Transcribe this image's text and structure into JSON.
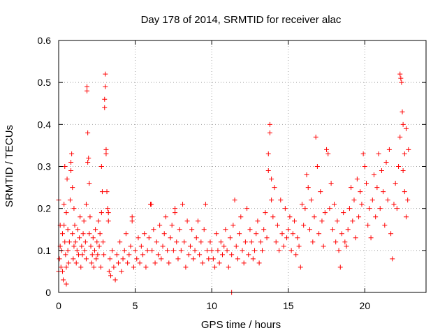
{
  "chart_data": {
    "type": "scatter",
    "title": "Day 178 of 2014, SRMTID for receiver alac",
    "xlabel": "GPS time / hours",
    "ylabel": "SRMTID / TECUs",
    "xlim": [
      0,
      24
    ],
    "ylim": [
      0,
      0.6
    ],
    "xticks": [
      0,
      5,
      10,
      15,
      20
    ],
    "yticks": [
      0,
      0.1,
      0.2,
      0.3,
      0.4,
      0.5,
      0.6
    ],
    "grid": true,
    "marker": "+",
    "series": [
      {
        "name": "SRMTID",
        "color": "#ff0000",
        "points": [
          [
            0.0,
            0.05
          ],
          [
            0.0,
            0.22
          ],
          [
            0.05,
            0.08
          ],
          [
            0.1,
            0.11
          ],
          [
            0.1,
            0.16
          ],
          [
            0.15,
            0.06
          ],
          [
            0.2,
            0.1
          ],
          [
            0.25,
            0.14
          ],
          [
            0.25,
            0.05
          ],
          [
            0.3,
            0.03
          ],
          [
            0.35,
            0.21
          ],
          [
            0.35,
            0.16
          ],
          [
            0.4,
            0.12
          ],
          [
            0.4,
            0.3
          ],
          [
            0.45,
            0.09
          ],
          [
            0.5,
            0.06
          ],
          [
            0.5,
            0.19
          ],
          [
            0.5,
            0.02
          ],
          [
            0.55,
            0.27
          ],
          [
            0.6,
            0.1
          ],
          [
            0.6,
            0.15
          ],
          [
            0.65,
            0.07
          ],
          [
            0.7,
            0.12
          ],
          [
            0.75,
            0.22
          ],
          [
            0.8,
            0.29
          ],
          [
            0.8,
            0.31
          ],
          [
            0.85,
            0.33
          ],
          [
            0.9,
            0.14
          ],
          [
            0.9,
            0.25
          ],
          [
            0.95,
            0.08
          ],
          [
            1.0,
            0.11
          ],
          [
            1.0,
            0.2
          ],
          [
            1.05,
            0.16
          ],
          [
            1.1,
            0.12
          ],
          [
            1.15,
            0.07
          ],
          [
            1.2,
            0.1
          ],
          [
            1.25,
            0.15
          ],
          [
            1.3,
            0.09
          ],
          [
            1.35,
            0.13
          ],
          [
            1.4,
            0.18
          ],
          [
            1.45,
            0.06
          ],
          [
            1.5,
            0.11
          ],
          [
            1.55,
            0.09
          ],
          [
            1.6,
            0.14
          ],
          [
            1.65,
            0.17
          ],
          [
            1.7,
            0.1
          ],
          [
            1.75,
            0.12
          ],
          [
            1.8,
            0.08
          ],
          [
            1.8,
            0.21
          ],
          [
            1.85,
            0.49
          ],
          [
            1.85,
            0.48
          ],
          [
            1.9,
            0.38
          ],
          [
            1.9,
            0.31
          ],
          [
            1.95,
            0.32
          ],
          [
            2.0,
            0.26
          ],
          [
            2.0,
            0.14
          ],
          [
            2.05,
            0.18
          ],
          [
            2.1,
            0.11
          ],
          [
            2.15,
            0.07
          ],
          [
            2.2,
            0.09
          ],
          [
            2.25,
            0.13
          ],
          [
            2.3,
            0.06
          ],
          [
            2.35,
            0.1
          ],
          [
            2.4,
            0.15
          ],
          [
            2.45,
            0.08
          ],
          [
            2.5,
            0.12
          ],
          [
            2.55,
            0.09
          ],
          [
            2.6,
            0.17
          ],
          [
            2.65,
            0.11
          ],
          [
            2.7,
            0.14
          ],
          [
            2.75,
            0.06
          ],
          [
            2.8,
            0.19
          ],
          [
            2.8,
            0.3
          ],
          [
            2.85,
            0.24
          ],
          [
            2.9,
            0.12
          ],
          [
            2.95,
            0.09
          ],
          [
            3.0,
            0.44
          ],
          [
            3.0,
            0.46
          ],
          [
            3.05,
            0.49
          ],
          [
            3.05,
            0.52
          ],
          [
            3.1,
            0.33
          ],
          [
            3.1,
            0.34
          ],
          [
            3.15,
            0.24
          ],
          [
            3.2,
            0.2
          ],
          [
            3.25,
            0.17
          ],
          [
            3.25,
            0.19
          ],
          [
            3.3,
            0.05
          ],
          [
            3.35,
            0.08
          ],
          [
            3.4,
            0.04
          ],
          [
            3.5,
            0.1
          ],
          [
            3.6,
            0.06
          ],
          [
            3.7,
            0.03
          ],
          [
            3.8,
            0.09
          ],
          [
            3.9,
            0.07
          ],
          [
            4.0,
            0.12
          ],
          [
            4.1,
            0.05
          ],
          [
            4.2,
            0.08
          ],
          [
            4.3,
            0.1
          ],
          [
            4.4,
            0.14
          ],
          [
            4.5,
            0.07
          ],
          [
            4.6,
            0.09
          ],
          [
            4.7,
            0.11
          ],
          [
            4.8,
            0.17
          ],
          [
            4.8,
            0.18
          ],
          [
            4.9,
            0.06
          ],
          [
            5.0,
            0.1
          ],
          [
            5.1,
            0.08
          ],
          [
            5.2,
            0.13
          ],
          [
            5.3,
            0.07
          ],
          [
            5.4,
            0.11
          ],
          [
            5.5,
            0.09
          ],
          [
            5.6,
            0.14
          ],
          [
            5.7,
            0.06
          ],
          [
            5.8,
            0.1
          ],
          [
            5.9,
            0.13
          ],
          [
            6.0,
            0.21
          ],
          [
            6.05,
            0.21
          ],
          [
            6.1,
            0.1
          ],
          [
            6.2,
            0.15
          ],
          [
            6.3,
            0.07
          ],
          [
            6.4,
            0.12
          ],
          [
            6.5,
            0.09
          ],
          [
            6.6,
            0.16
          ],
          [
            6.7,
            0.08
          ],
          [
            6.8,
            0.11
          ],
          [
            6.9,
            0.14
          ],
          [
            7.0,
            0.18
          ],
          [
            7.1,
            0.1
          ],
          [
            7.2,
            0.07
          ],
          [
            7.3,
            0.13
          ],
          [
            7.4,
            0.16
          ],
          [
            7.5,
            0.1
          ],
          [
            7.6,
            0.19
          ],
          [
            7.6,
            0.2
          ],
          [
            7.7,
            0.12
          ],
          [
            7.8,
            0.08
          ],
          [
            7.9,
            0.15
          ],
          [
            8.0,
            0.1
          ],
          [
            8.1,
            0.21
          ],
          [
            8.2,
            0.12
          ],
          [
            8.3,
            0.06
          ],
          [
            8.4,
            0.17
          ],
          [
            8.5,
            0.09
          ],
          [
            8.6,
            0.11
          ],
          [
            8.7,
            0.15
          ],
          [
            8.8,
            0.08
          ],
          [
            8.9,
            0.1
          ],
          [
            9.0,
            0.13
          ],
          [
            9.1,
            0.17
          ],
          [
            9.2,
            0.09
          ],
          [
            9.3,
            0.12
          ],
          [
            9.4,
            0.07
          ],
          [
            9.5,
            0.15
          ],
          [
            9.6,
            0.21
          ],
          [
            9.7,
            0.1
          ],
          [
            9.8,
            0.08
          ],
          [
            9.9,
            0.12
          ],
          [
            10.0,
            0.1
          ],
          [
            10.1,
            0.08
          ],
          [
            10.2,
            0.06
          ],
          [
            10.3,
            0.14
          ],
          [
            10.4,
            0.1
          ],
          [
            10.5,
            0.07
          ],
          [
            10.6,
            0.12
          ],
          [
            10.7,
            0.09
          ],
          [
            10.8,
            0.11
          ],
          [
            10.9,
            0.15
          ],
          [
            11.0,
            0.1
          ],
          [
            11.1,
            0.06
          ],
          [
            11.2,
            0.13
          ],
          [
            11.3,
            0.0
          ],
          [
            11.3,
            0.09
          ],
          [
            11.4,
            0.16
          ],
          [
            11.5,
            0.22
          ],
          [
            11.6,
            0.11
          ],
          [
            11.7,
            0.08
          ],
          [
            11.8,
            0.14
          ],
          [
            11.9,
            0.18
          ],
          [
            12.0,
            0.1
          ],
          [
            12.1,
            0.07
          ],
          [
            12.2,
            0.12
          ],
          [
            12.3,
            0.2
          ],
          [
            12.4,
            0.09
          ],
          [
            12.5,
            0.15
          ],
          [
            12.6,
            0.12
          ],
          [
            12.7,
            0.08
          ],
          [
            12.8,
            0.1
          ],
          [
            12.9,
            0.14
          ],
          [
            13.0,
            0.17
          ],
          [
            13.1,
            0.07
          ],
          [
            13.2,
            0.12
          ],
          [
            13.3,
            0.1
          ],
          [
            13.4,
            0.15
          ],
          [
            13.5,
            0.19
          ],
          [
            13.6,
            0.13
          ],
          [
            13.7,
            0.29
          ],
          [
            13.7,
            0.33
          ],
          [
            13.8,
            0.38
          ],
          [
            13.8,
            0.4
          ],
          [
            13.9,
            0.27
          ],
          [
            13.9,
            0.22
          ],
          [
            14.0,
            0.18
          ],
          [
            14.1,
            0.25
          ],
          [
            14.2,
            0.12
          ],
          [
            14.3,
            0.16
          ],
          [
            14.4,
            0.1
          ],
          [
            14.5,
            0.22
          ],
          [
            14.6,
            0.14
          ],
          [
            14.7,
            0.11
          ],
          [
            14.8,
            0.2
          ],
          [
            14.9,
            0.13
          ],
          [
            15.0,
            0.15
          ],
          [
            15.1,
            0.18
          ],
          [
            15.2,
            0.1
          ],
          [
            15.3,
            0.14
          ],
          [
            15.4,
            0.17
          ],
          [
            15.5,
            0.09
          ],
          [
            15.6,
            0.13
          ],
          [
            15.7,
            0.11
          ],
          [
            15.8,
            0.06
          ],
          [
            15.9,
            0.21
          ],
          [
            16.0,
            0.16
          ],
          [
            16.1,
            0.2
          ],
          [
            16.2,
            0.28
          ],
          [
            16.3,
            0.25
          ],
          [
            16.4,
            0.15
          ],
          [
            16.5,
            0.22
          ],
          [
            16.6,
            0.12
          ],
          [
            16.7,
            0.18
          ],
          [
            16.8,
            0.37
          ],
          [
            16.9,
            0.3
          ],
          [
            17.0,
            0.14
          ],
          [
            17.1,
            0.24
          ],
          [
            17.2,
            0.17
          ],
          [
            17.3,
            0.11
          ],
          [
            17.4,
            0.19
          ],
          [
            17.5,
            0.34
          ],
          [
            17.6,
            0.33
          ],
          [
            17.7,
            0.2
          ],
          [
            17.8,
            0.26
          ],
          [
            17.9,
            0.15
          ],
          [
            18.0,
            0.21
          ],
          [
            18.1,
            0.12
          ],
          [
            18.2,
            0.17
          ],
          [
            18.3,
            0.1
          ],
          [
            18.4,
            0.06
          ],
          [
            18.5,
            0.14
          ],
          [
            18.6,
            0.19
          ],
          [
            18.7,
            0.12
          ],
          [
            18.8,
            0.11
          ],
          [
            18.9,
            0.15
          ],
          [
            19.0,
            0.2
          ],
          [
            19.1,
            0.25
          ],
          [
            19.2,
            0.17
          ],
          [
            19.3,
            0.22
          ],
          [
            19.4,
            0.13
          ],
          [
            19.5,
            0.27
          ],
          [
            19.6,
            0.18
          ],
          [
            19.7,
            0.24
          ],
          [
            19.8,
            0.21
          ],
          [
            19.9,
            0.33
          ],
          [
            20.0,
            0.3
          ],
          [
            20.1,
            0.26
          ],
          [
            20.2,
            0.16
          ],
          [
            20.3,
            0.2
          ],
          [
            20.4,
            0.13
          ],
          [
            20.5,
            0.22
          ],
          [
            20.6,
            0.28
          ],
          [
            20.7,
            0.18
          ],
          [
            20.8,
            0.25
          ],
          [
            20.9,
            0.33
          ],
          [
            21.0,
            0.2
          ],
          [
            21.1,
            0.29
          ],
          [
            21.2,
            0.24
          ],
          [
            21.3,
            0.16
          ],
          [
            21.4,
            0.31
          ],
          [
            21.5,
            0.22
          ],
          [
            21.6,
            0.34
          ],
          [
            21.7,
            0.14
          ],
          [
            21.8,
            0.08
          ],
          [
            21.9,
            0.21
          ],
          [
            22.0,
            0.26
          ],
          [
            22.1,
            0.2
          ],
          [
            22.2,
            0.3
          ],
          [
            22.3,
            0.37
          ],
          [
            22.3,
            0.52
          ],
          [
            22.35,
            0.51
          ],
          [
            22.4,
            0.5
          ],
          [
            22.45,
            0.43
          ],
          [
            22.5,
            0.4
          ],
          [
            22.5,
            0.29
          ],
          [
            22.6,
            0.33
          ],
          [
            22.6,
            0.24
          ],
          [
            22.7,
            0.39
          ],
          [
            22.7,
            0.18
          ],
          [
            22.8,
            0.22
          ],
          [
            22.85,
            0.34
          ]
        ]
      }
    ]
  }
}
